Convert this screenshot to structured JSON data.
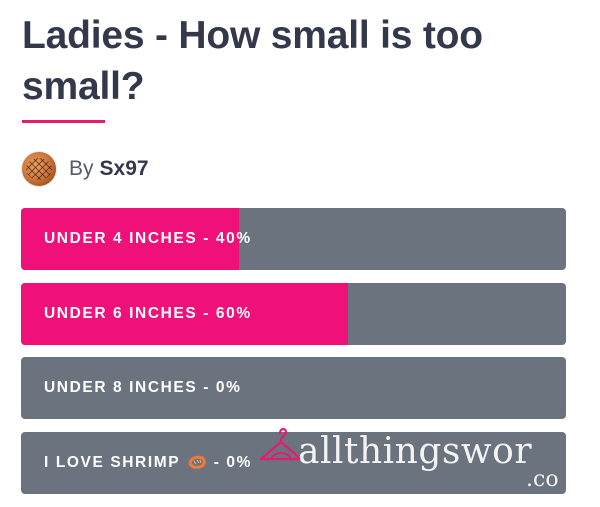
{
  "poll": {
    "title": "Ladies - How small is too small?",
    "author": {
      "by_label": "By",
      "name": "Sx97"
    },
    "options": [
      {
        "label": "UNDER 4 INCHES - 40%",
        "percent": 40
      },
      {
        "label": "UNDER 6 INCHES - 60%",
        "percent": 60
      },
      {
        "label": "UNDER 8 INCHES - 0%",
        "percent": 0
      },
      {
        "label_before_icon": "I LOVE SHRIMP ",
        "icon": "shrimp-icon",
        "label_after_icon": " - 0%",
        "percent": 0
      }
    ]
  },
  "watermark": {
    "text": "allthingswor",
    "suffix": ".co",
    "icon": "hanger-icon"
  },
  "colors": {
    "accent": "#f0107a",
    "bar_background": "#6b737e",
    "title": "#33384a",
    "underline": "#e8196f"
  }
}
